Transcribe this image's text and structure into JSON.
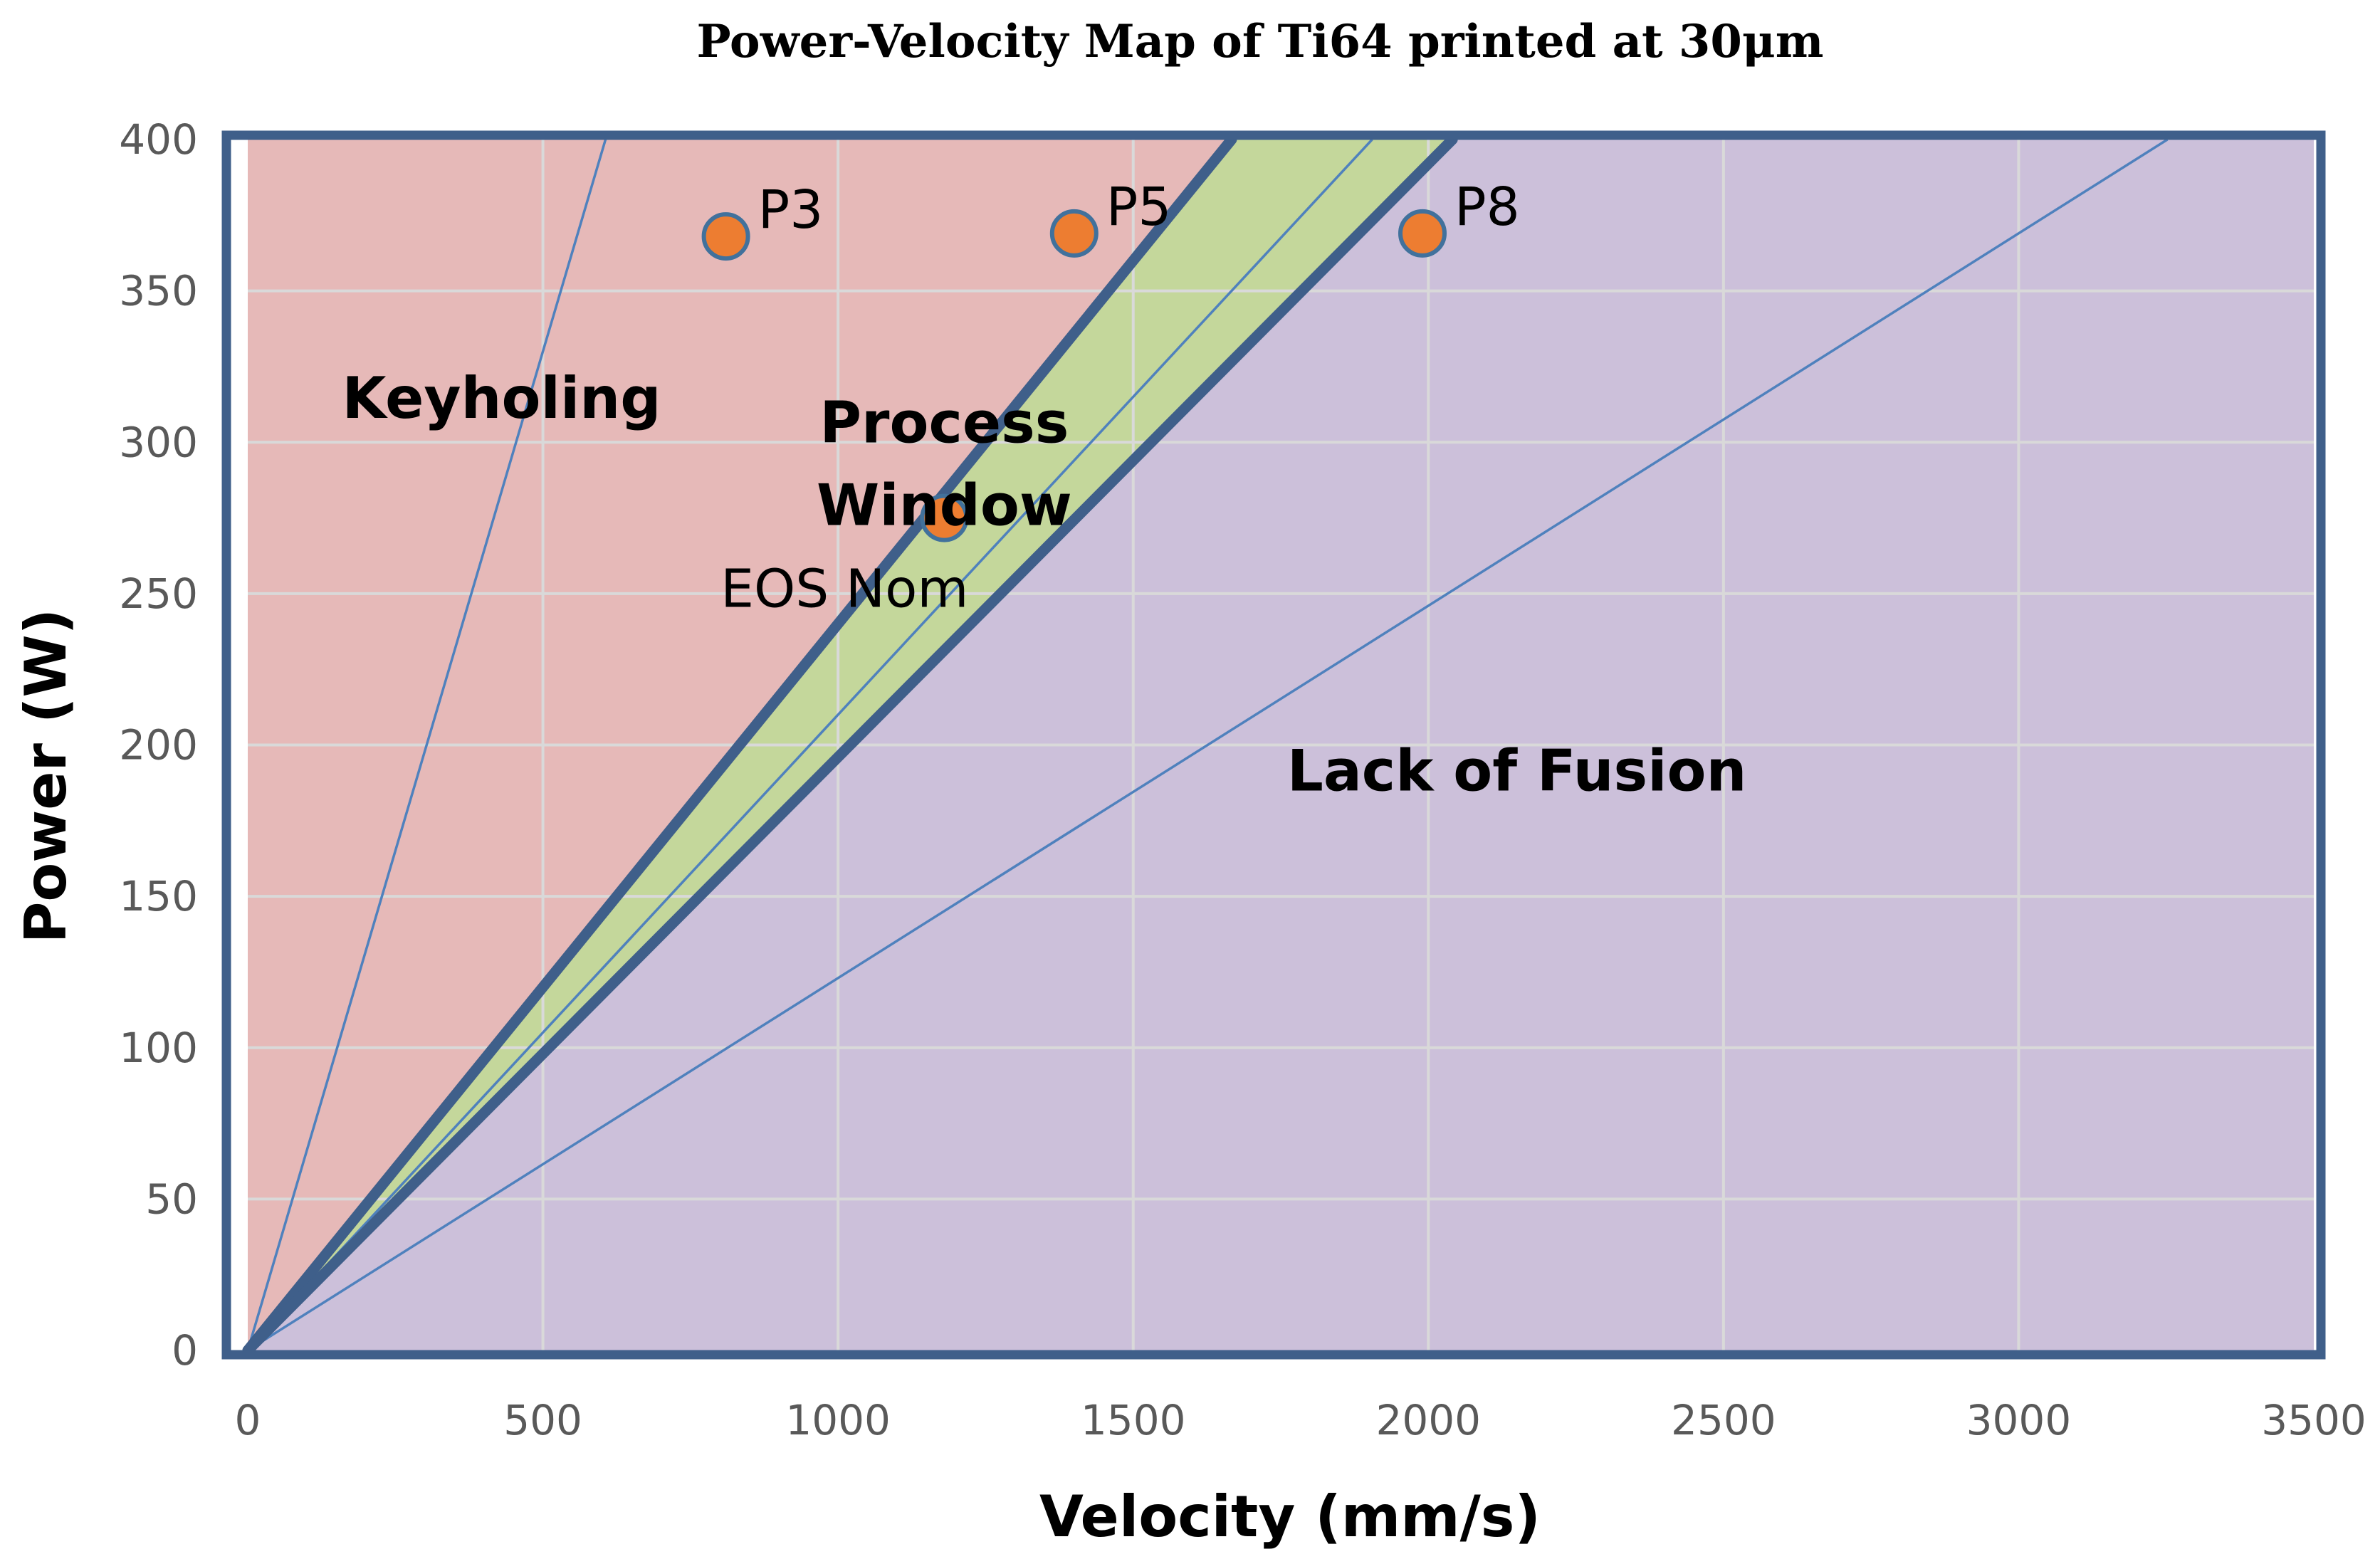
{
  "chart_data": {
    "type": "scatter",
    "title": "Power-Velocity Map of Ti64 printed at 30μm",
    "xlabel": "Velocity (mm/s)",
    "ylabel": "Power (W)",
    "xlim": [
      0,
      3500
    ],
    "ylim": [
      0,
      400
    ],
    "x_ticks": [
      0,
      500,
      1000,
      1500,
      2000,
      2500,
      3000,
      3500
    ],
    "y_ticks": [
      0,
      50,
      100,
      150,
      200,
      250,
      300,
      350,
      400
    ],
    "grid": true,
    "regions": [
      {
        "name": "Keyholing",
        "label_lines": [
          "Keyholing"
        ],
        "color": "#e6b9b8",
        "label_at": [
          430,
          308
        ]
      },
      {
        "name": "Process Window",
        "label_lines": [
          "Process",
          "Window"
        ],
        "color": "#c4d79b",
        "label_at": [
          1180,
          300
        ]
      },
      {
        "name": "Lack of Fusion",
        "label_lines": [
          "Lack of Fusion"
        ],
        "color": "#ccc0da",
        "label_at": [
          2150,
          185
        ]
      }
    ],
    "boundaries": [
      {
        "name": "keyholing-boundary",
        "slope_w_per_mm_s": 0.24,
        "thick": true
      },
      {
        "name": "lack-of-fusion-boundary",
        "slope_w_per_mm_s": 0.196,
        "thick": true
      }
    ],
    "constant_energy_lines": [
      {
        "slope_w_per_mm_s": 0.66
      },
      {
        "slope_w_per_mm_s": 0.21
      },
      {
        "slope_w_per_mm_s": 0.123
      }
    ],
    "points": [
      {
        "label": "P3",
        "x": 810,
        "y": 368,
        "label_pos": "upper-right"
      },
      {
        "label": "P5",
        "x": 1400,
        "y": 369,
        "label_pos": "upper-right"
      },
      {
        "label": "P8",
        "x": 1990,
        "y": 369,
        "label_pos": "upper-right"
      },
      {
        "label": "EOS Nom",
        "x": 1180,
        "y": 275,
        "label_pos": "below-left"
      }
    ],
    "colors": {
      "border": "#3f5f8a",
      "boundary_line": "#3f5f8a",
      "thin_line": "#4f81bd",
      "grid": "#d9d9d9",
      "point_fill": "#ed7d31",
      "point_stroke": "#41719c",
      "axis_text": "#595959",
      "label_text": "#000000"
    }
  }
}
